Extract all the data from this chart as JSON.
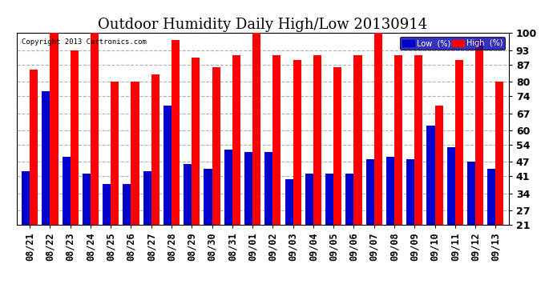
{
  "title": "Outdoor Humidity Daily High/Low 20130914",
  "copyright": "Copyright 2013 Cartronics.com",
  "categories": [
    "08/21",
    "08/22",
    "08/23",
    "08/24",
    "08/25",
    "08/26",
    "08/27",
    "08/28",
    "08/29",
    "08/30",
    "08/31",
    "09/01",
    "09/02",
    "09/03",
    "09/04",
    "09/05",
    "09/06",
    "09/07",
    "09/08",
    "09/09",
    "09/10",
    "09/11",
    "09/12",
    "09/13"
  ],
  "high": [
    85,
    100,
    93,
    100,
    80,
    80,
    83,
    97,
    90,
    86,
    91,
    100,
    91,
    89,
    91,
    86,
    91,
    100,
    91,
    91,
    70,
    89,
    97,
    80
  ],
  "low": [
    43,
    76,
    49,
    42,
    38,
    38,
    43,
    70,
    46,
    44,
    52,
    51,
    51,
    40,
    42,
    42,
    42,
    48,
    49,
    48,
    62,
    53,
    47,
    44
  ],
  "high_color": "#ff0000",
  "low_color": "#0000cc",
  "bg_color": "#ffffff",
  "grid_color": "#b0b0b0",
  "ylim_min": 21,
  "ylim_max": 100,
  "yticks": [
    21,
    27,
    34,
    41,
    47,
    54,
    60,
    67,
    74,
    80,
    87,
    93,
    100
  ],
  "legend_low_label": "Low  (%)",
  "legend_high_label": "High  (%)",
  "title_fontsize": 13,
  "tick_fontsize": 9,
  "bar_width": 0.4
}
